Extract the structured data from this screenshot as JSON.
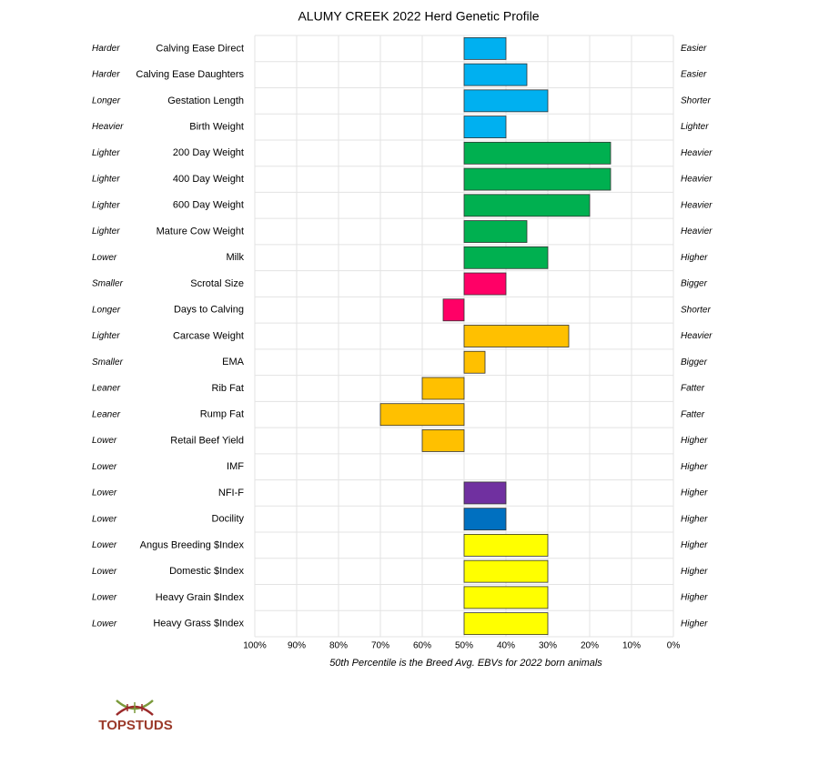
{
  "chart_data": {
    "type": "bar",
    "orientation": "horizontal",
    "title": "ALUMY CREEK 2022 Herd Genetic Profile",
    "x_label": "50th Percentile is the Breed Avg. EBVs for 2022 born animals",
    "categories": [
      "Calving Ease Direct",
      "Calving Ease Daughters",
      "Gestation Length",
      "Birth Weight",
      "200 Day Weight",
      "400 Day Weight",
      "600 Day Weight",
      "Mature Cow Weight",
      "Milk",
      "Scrotal Size",
      "Days to Calving",
      "Carcase Weight",
      "EMA",
      "Rib Fat",
      "Rump Fat",
      "Retail Beef Yield",
      "IMF",
      "NFI-F",
      "Docility",
      "Angus Breeding $Index",
      "Domestic $Index",
      "Heavy Grain $Index",
      "Heavy Grass $Index"
    ],
    "low_labels": [
      "Harder",
      "Harder",
      "Longer",
      "Heavier",
      "Lighter",
      "Lighter",
      "Lighter",
      "Lighter",
      "Lower",
      "Smaller",
      "Longer",
      "Lighter",
      "Smaller",
      "Leaner",
      "Leaner",
      "Lower",
      "Lower",
      "Lower",
      "Lower",
      "Lower",
      "Lower",
      "Lower",
      "Lower"
    ],
    "high_labels": [
      "Easier",
      "Easier",
      "Shorter",
      "Lighter",
      "Heavier",
      "Heavier",
      "Heavier",
      "Heavier",
      "Higher",
      "Bigger",
      "Shorter",
      "Heavier",
      "Bigger",
      "Fatter",
      "Fatter",
      "Higher",
      "Higher",
      "Higher",
      "Higher",
      "Higher",
      "Higher",
      "Higher",
      "Higher"
    ],
    "values": [
      40,
      35,
      30,
      40,
      15,
      15,
      20,
      35,
      30,
      40,
      55,
      25,
      45,
      60,
      70,
      60,
      50,
      40,
      40,
      30,
      30,
      30,
      30
    ],
    "colors": [
      "#00b0f0",
      "#00b0f0",
      "#00b0f0",
      "#00b0f0",
      "#00b050",
      "#00b050",
      "#00b050",
      "#00b050",
      "#00b050",
      "#ff0066",
      "#ff0066",
      "#ffc000",
      "#ffc000",
      "#ffc000",
      "#ffc000",
      "#ffc000",
      "#ffc000",
      "#7030a0",
      "#0070c0",
      "#ffff00",
      "#ffff00",
      "#ffff00",
      "#ffff00"
    ],
    "baseline": 50,
    "xlim": [
      100,
      0
    ],
    "xticks": [
      {
        "value": 100,
        "label": "100%"
      },
      {
        "value": 90,
        "label": "90%"
      },
      {
        "value": 80,
        "label": "80%"
      },
      {
        "value": 70,
        "label": "70%"
      },
      {
        "value": 60,
        "label": "60%"
      },
      {
        "value": 50,
        "label": "50%"
      },
      {
        "value": 40,
        "label": "40%"
      },
      {
        "value": 30,
        "label": "30%"
      },
      {
        "value": 20,
        "label": "20%"
      },
      {
        "value": 10,
        "label": "10%"
      },
      {
        "value": 0,
        "label": "0%"
      }
    ],
    "grid": true
  },
  "logo": "TOPSTUDS"
}
